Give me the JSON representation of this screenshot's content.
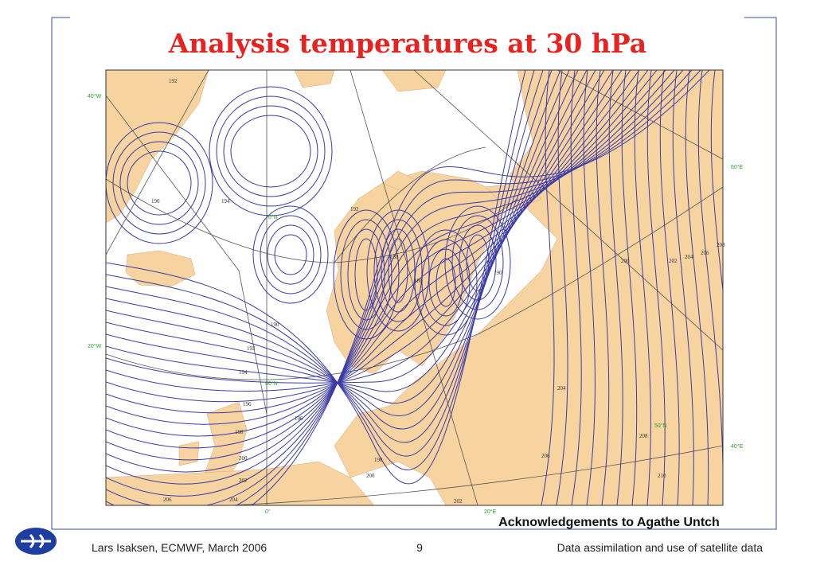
{
  "slide": {
    "title": "Analysis temperatures at 30 hPa",
    "acknowledgement": "Acknowledgements to Agathe Untch",
    "footer_left": "Lars Isaksen, ECMWF, March 2006",
    "page_number": "9",
    "footer_right": "Data assimilation and use of satellite data"
  },
  "map": {
    "graticule_labels": [
      "40°W",
      "20°W",
      "0°",
      "20°E",
      "40°E",
      "60°E",
      "70°N",
      "60°N",
      "50°N",
      "50°N"
    ],
    "contour_labels": [
      "192",
      "194",
      "192",
      "190",
      "190",
      "192",
      "194",
      "196",
      "198",
      "200",
      "202",
      "204",
      "206",
      "196",
      "198",
      "200",
      "202",
      "204",
      "206",
      "208",
      "210",
      "186",
      "188",
      "190",
      "200",
      "202",
      "204",
      "206",
      "208"
    ]
  }
}
